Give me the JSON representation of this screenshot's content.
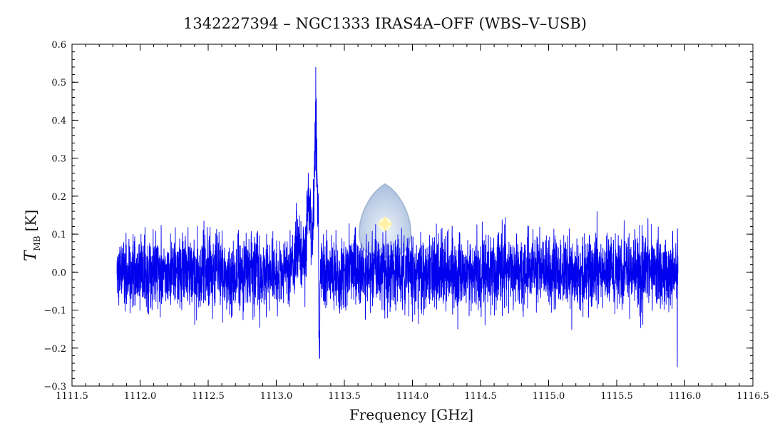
{
  "chart_data": {
    "type": "line",
    "title": "1342227394 – NGC1333 IRAS4A–OFF (WBS–V–USB)",
    "xlabel": "Frequency [GHz]",
    "ylabel_main": "T",
    "ylabel_sub": "MB",
    "ylabel_unit": "[K]",
    "xlim": [
      1111.5,
      1116.5
    ],
    "ylim": [
      -0.3,
      0.6
    ],
    "xticks": [
      1111.5,
      1112.0,
      1112.5,
      1113.0,
      1113.5,
      1114.0,
      1114.5,
      1115.0,
      1115.5,
      1116.0,
      1116.5
    ],
    "xtick_labels": [
      "1111.5",
      "1112.0",
      "1112.5",
      "1113.0",
      "1113.5",
      "1114.0",
      "1114.5",
      "1115.0",
      "1115.5",
      "1116.0",
      "1116.5"
    ],
    "yticks": [
      -0.3,
      -0.2,
      -0.1,
      0.0,
      0.1,
      0.2,
      0.3,
      0.4,
      0.5,
      0.6
    ],
    "ytick_labels": [
      "−0.3",
      "−0.2",
      "−0.1",
      "0.0",
      "0.1",
      "0.2",
      "0.3",
      "0.4",
      "0.5",
      "0.6"
    ],
    "series": [
      {
        "color": "#0000ee",
        "x_range": [
          1111.83,
          1115.95
        ],
        "baseline_noise_rms": 0.055,
        "features": [
          {
            "x": 1113.18,
            "y": 0.15
          },
          {
            "x": 1113.24,
            "y": 0.3
          },
          {
            "x": 1113.29,
            "y": 0.54
          },
          {
            "x": 1113.31,
            "y": 0.46
          },
          {
            "x": 1113.315,
            "y": -0.07
          }
        ],
        "extrema": {
          "max": 0.54,
          "min": -0.25
        }
      }
    ],
    "grid": false,
    "legend": "none"
  },
  "watermark": {
    "icon": "herschel-logo-icon",
    "colors": [
      "#7fa8d8",
      "#ffe45c"
    ]
  }
}
